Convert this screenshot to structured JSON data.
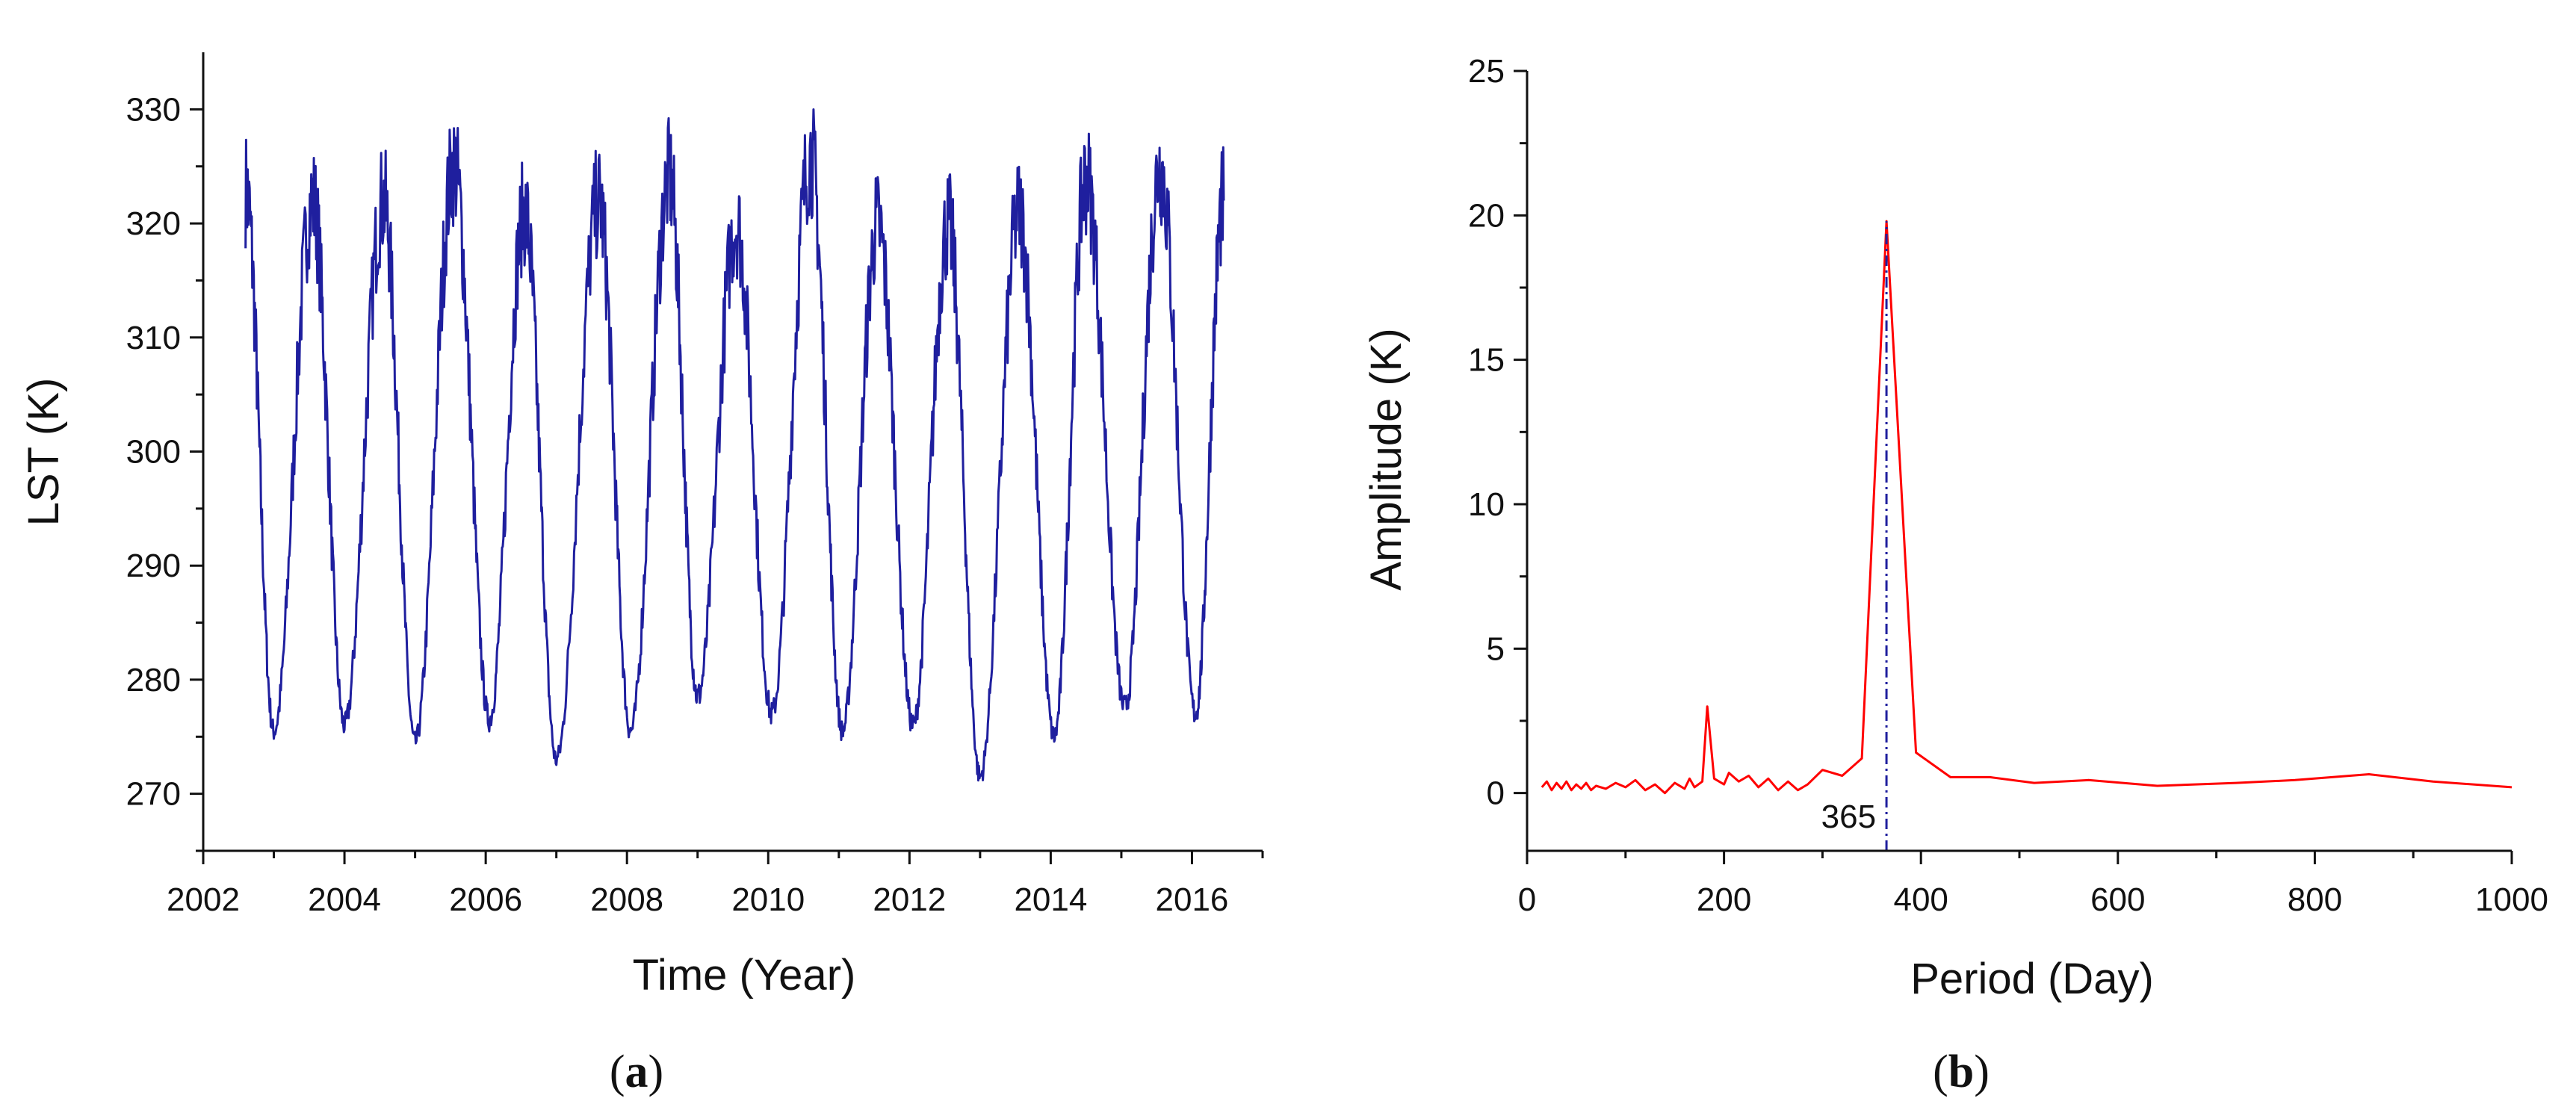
{
  "chart_data": [
    {
      "panel": "a",
      "panel_label": "a",
      "type": "line",
      "title": "",
      "xlabel": "Time (Year)",
      "ylabel": "LST (K)",
      "xlim": [
        2002,
        2017
      ],
      "ylim": [
        265,
        335
      ],
      "xticks": [
        2002,
        2004,
        2006,
        2008,
        2010,
        2012,
        2014,
        2016
      ],
      "xtick_labels": [
        "2002",
        "2004",
        "2006",
        "2008",
        "2010",
        "2012",
        "2014",
        "2016"
      ],
      "yticks": [
        270,
        280,
        290,
        300,
        310,
        320,
        330
      ],
      "ytick_labels": [
        "270",
        "280",
        "290",
        "300",
        "310",
        "320",
        "330"
      ],
      "grid": false,
      "series": [
        {
          "name": "LST",
          "color": "#1f1f9e",
          "x_start": 2002.55,
          "x_end": 2016.45,
          "peaks": [
            {
              "x": 2002.6,
              "y": 323
            },
            {
              "x": 2003.55,
              "y": 322
            },
            {
              "x": 2004.55,
              "y": 322
            },
            {
              "x": 2005.55,
              "y": 325
            },
            {
              "x": 2006.55,
              "y": 321
            },
            {
              "x": 2007.6,
              "y": 322
            },
            {
              "x": 2008.6,
              "y": 324
            },
            {
              "x": 2009.55,
              "y": 320
            },
            {
              "x": 2010.6,
              "y": 326
            },
            {
              "x": 2011.55,
              "y": 320
            },
            {
              "x": 2012.55,
              "y": 320
            },
            {
              "x": 2013.55,
              "y": 321
            },
            {
              "x": 2014.5,
              "y": 324
            },
            {
              "x": 2015.55,
              "y": 325
            },
            {
              "x": 2016.45,
              "y": 322
            }
          ],
          "troughs": [
            {
              "x": 2003.0,
              "y": 275.5
            },
            {
              "x": 2004.0,
              "y": 276
            },
            {
              "x": 2005.0,
              "y": 274.5
            },
            {
              "x": 2006.05,
              "y": 276.5
            },
            {
              "x": 2007.0,
              "y": 273
            },
            {
              "x": 2008.05,
              "y": 275.5
            },
            {
              "x": 2009.0,
              "y": 278.5
            },
            {
              "x": 2010.05,
              "y": 277
            },
            {
              "x": 2011.05,
              "y": 275.5
            },
            {
              "x": 2012.05,
              "y": 276
            },
            {
              "x": 2013.0,
              "y": 271.5
            },
            {
              "x": 2014.05,
              "y": 275
            },
            {
              "x": 2015.05,
              "y": 277.5
            },
            {
              "x": 2016.05,
              "y": 277
            }
          ]
        }
      ]
    },
    {
      "panel": "b",
      "panel_label": "b",
      "type": "line",
      "title": "",
      "xlabel": "Period (Day)",
      "ylabel": "Amplitude (K)",
      "xlim": [
        0,
        1000
      ],
      "ylim": [
        -2,
        25
      ],
      "xticks": [
        0,
        200,
        400,
        600,
        800,
        1000
      ],
      "xtick_labels": [
        "0",
        "200",
        "400",
        "600",
        "800",
        "1000"
      ],
      "yticks": [
        0,
        5,
        10,
        15,
        20,
        25
      ],
      "ytick_labels": [
        "0",
        "5",
        "10",
        "15",
        "20",
        "25"
      ],
      "grid": false,
      "series": [
        {
          "name": "Amplitude",
          "color": "#ff0000",
          "x": [
            15,
            20,
            25,
            30,
            35,
            40,
            45,
            50,
            55,
            60,
            65,
            70,
            80,
            90,
            100,
            110,
            120,
            130,
            140,
            150,
            160,
            165,
            170,
            178,
            183,
            190,
            200,
            205,
            215,
            225,
            235,
            245,
            255,
            265,
            275,
            285,
            300,
            320,
            340,
            365,
            395,
            430,
            470,
            515,
            570,
            640,
            720,
            780,
            855,
            920,
            1000
          ],
          "y": [
            0.2,
            0.4,
            0.1,
            0.35,
            0.15,
            0.4,
            0.1,
            0.3,
            0.15,
            0.35,
            0.1,
            0.25,
            0.15,
            0.35,
            0.2,
            0.45,
            0.1,
            0.3,
            0.0,
            0.35,
            0.15,
            0.5,
            0.2,
            0.4,
            3.0,
            0.5,
            0.3,
            0.7,
            0.4,
            0.6,
            0.2,
            0.5,
            0.1,
            0.4,
            0.1,
            0.3,
            0.8,
            0.6,
            1.2,
            19.8,
            1.4,
            0.55,
            0.55,
            0.35,
            0.45,
            0.25,
            0.35,
            0.45,
            0.65,
            0.4,
            0.2
          ]
        }
      ],
      "reference_line": {
        "x": 365,
        "color": "#1f1f9e",
        "style": "dash-dot",
        "label": "365"
      }
    }
  ]
}
